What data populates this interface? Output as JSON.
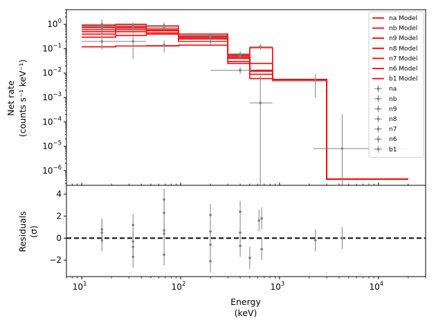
{
  "chart_data": [
    {
      "type": "line",
      "panel": "spectrum",
      "ylabel": "Net rate",
      "ylabel_units": "(counts s⁻¹ keV⁻¹)",
      "xscale": "log",
      "yscale": "log",
      "xlim": [
        7,
        30000
      ],
      "ylim": [
        2.5e-07,
        4
      ],
      "y_ticks": [
        {
          "value": 1e-06,
          "base": "10",
          "exp": "−6"
        },
        {
          "value": 1e-05,
          "base": "10",
          "exp": "−5"
        },
        {
          "value": 0.0001,
          "base": "10",
          "exp": "−4"
        },
        {
          "value": 0.001,
          "base": "10",
          "exp": "−3"
        },
        {
          "value": 0.01,
          "base": "10",
          "exp": "−2"
        },
        {
          "value": 0.1,
          "base": "10",
          "exp": "−1"
        },
        {
          "value": 1,
          "base": "10",
          "exp": "0"
        }
      ],
      "legend_position": "top-right",
      "model_color": "#ff0000",
      "data_color": "#808080",
      "model_series": [
        {
          "name": "na Model",
          "edges": [
            10,
            22,
            45,
            95,
            300,
            500,
            850,
            3000,
            20000
          ],
          "values": [
            0.4,
            0.5,
            0.45,
            0.2,
            0.03,
            0.006,
            0.005,
            4.5e-07
          ]
        },
        {
          "name": "nb Model",
          "edges": [
            10,
            22,
            45,
            95,
            300,
            500,
            850,
            3000,
            20000
          ],
          "values": [
            0.6,
            0.7,
            0.6,
            0.28,
            0.045,
            0.009,
            0.005,
            4.5e-07
          ]
        },
        {
          "name": "n9 Model",
          "edges": [
            10,
            22,
            45,
            95,
            300,
            500,
            850,
            3000,
            20000
          ],
          "values": [
            0.12,
            0.13,
            0.13,
            0.14,
            0.025,
            0.012,
            0.0055,
            4.5e-07
          ]
        },
        {
          "name": "n8 Model",
          "edges": [
            10,
            22,
            45,
            95,
            300,
            500,
            850,
            3000,
            20000
          ],
          "values": [
            0.9,
            1.0,
            0.85,
            0.4,
            0.06,
            0.013,
            0.005,
            4.5e-07
          ]
        },
        {
          "name": "n7 Model",
          "edges": [
            10,
            22,
            45,
            95,
            300,
            500,
            850,
            3000,
            20000
          ],
          "values": [
            0.75,
            0.8,
            0.7,
            0.33,
            0.055,
            0.025,
            0.0055,
            4.5e-07
          ]
        },
        {
          "name": "n6 Model",
          "edges": [
            10,
            22,
            45,
            95,
            300,
            500,
            850,
            3000,
            20000
          ],
          "values": [
            0.5,
            0.6,
            0.55,
            0.3,
            0.05,
            0.11,
            0.0055,
            4.5e-07
          ]
        },
        {
          "name": "b1 Model",
          "edges": [
            10,
            22,
            45,
            95,
            300,
            500,
            850,
            3000,
            20000
          ],
          "values": [
            0.3,
            0.35,
            0.4,
            0.25,
            0.04,
            0.013,
            0.005,
            4.5e-07
          ]
        }
      ],
      "data_series": [
        {
          "name": "na",
          "points": [
            {
              "x": 16,
              "xlo": 10,
              "xhi": 22,
              "y": 1.0,
              "ylo": 0.5,
              "yhi": 1.6
            },
            {
              "x": 33,
              "xlo": 22,
              "xhi": 45,
              "y": 0.75,
              "ylo": 0.5,
              "yhi": 1.0
            },
            {
              "x": 200,
              "xlo": 95,
              "xhi": 300,
              "y": 0.35,
              "ylo": 0.25,
              "yhi": 0.45
            }
          ]
        },
        {
          "name": "nb",
          "points": [
            {
              "x": 16,
              "xlo": 10,
              "xhi": 22,
              "y": 0.8,
              "ylo": 0.5,
              "yhi": 1.2
            },
            {
              "x": 68,
              "xlo": 45,
              "xhi": 95,
              "y": 0.9,
              "ylo": 0.6,
              "yhi": 1.2
            },
            {
              "x": 400,
              "xlo": 300,
              "xhi": 500,
              "y": 0.05,
              "ylo": 0.035,
              "yhi": 0.07
            }
          ]
        },
        {
          "name": "n9",
          "points": [
            {
              "x": 16,
              "xlo": 10,
              "xhi": 22,
              "y": 0.2,
              "ylo": 0.09,
              "yhi": 0.35
            },
            {
              "x": 33,
              "xlo": 22,
              "xhi": 45,
              "y": 0.2,
              "ylo": 0.04,
              "yhi": 0.5
            },
            {
              "x": 68,
              "xlo": 45,
              "xhi": 95,
              "y": 0.14,
              "ylo": 0.07,
              "yhi": 0.22
            }
          ]
        },
        {
          "name": "n8",
          "points": [
            {
              "x": 16,
              "xlo": 10,
              "xhi": 22,
              "y": 0.7,
              "ylo": 0.4,
              "yhi": 1.0
            },
            {
              "x": 33,
              "xlo": 22,
              "xhi": 45,
              "y": 0.9,
              "ylo": 0.6,
              "yhi": 1.2
            },
            {
              "x": 200,
              "xlo": 95,
              "xhi": 300,
              "y": 0.3,
              "ylo": 0.2,
              "yhi": 0.4
            }
          ]
        },
        {
          "name": "n7",
          "points": [
            {
              "x": 68,
              "xlo": 45,
              "xhi": 95,
              "y": 0.7,
              "ylo": 0.5,
              "yhi": 0.9
            },
            {
              "x": 400,
              "xlo": 200,
              "xhi": 550,
              "y": 0.013,
              "ylo": 0.009,
              "yhi": 0.018
            },
            {
              "x": 640,
              "xlo": 500,
              "xhi": 850,
              "y": 0.12,
              "ylo": 0.09,
              "yhi": 0.15
            }
          ]
        },
        {
          "name": "n6",
          "points": [
            {
              "x": 400,
              "xlo": 300,
              "xhi": 500,
              "y": 0.06,
              "ylo": 0.045,
              "yhi": 0.08
            },
            {
              "x": 640,
              "xlo": 500,
              "xhi": 850,
              "y": 0.0006,
              "ylo": 2.5e-07,
              "yhi": 0.008
            },
            {
              "x": 2300,
              "xlo": 850,
              "xhi": 3000,
              "y": 0.005,
              "ylo": 0.001,
              "yhi": 0.009
            }
          ]
        },
        {
          "name": "b1",
          "points": [
            {
              "x": 200,
              "xlo": 95,
              "xhi": 300,
              "y": 0.2,
              "ylo": 0.15,
              "yhi": 0.3
            },
            {
              "x": 4300,
              "xlo": 2200,
              "xhi": 20000,
              "y": 8e-06,
              "ylo": 2.5e-07,
              "yhi": 0.0002
            }
          ]
        }
      ]
    },
    {
      "type": "scatter",
      "panel": "residuals",
      "xlabel": "Energy",
      "xlabel_units": "(keV)",
      "ylabel": "Residuals",
      "ylabel_units": "(σ)",
      "xscale": "log",
      "xlim": [
        7,
        30000
      ],
      "ylim": [
        -3.5,
        4.8
      ],
      "y_ticks": [
        {
          "value": -2,
          "label": "−2"
        },
        {
          "value": 0,
          "label": "0"
        },
        {
          "value": 2,
          "label": "2"
        },
        {
          "value": 4,
          "label": "4"
        }
      ],
      "x_ticks": [
        {
          "value": 10,
          "base": "10",
          "exp": "1"
        },
        {
          "value": 100,
          "base": "10",
          "exp": "2"
        },
        {
          "value": 1000,
          "base": "10",
          "exp": "3"
        },
        {
          "value": 10000,
          "base": "10",
          "exp": "4"
        }
      ],
      "zero_line": 0,
      "points": [
        {
          "x": 16,
          "y": 0.8,
          "err": 1.0
        },
        {
          "x": 16,
          "y": 0.5,
          "err": 1.0
        },
        {
          "x": 16,
          "y": -0.2,
          "err": 1.0
        },
        {
          "x": 33,
          "y": 1.2,
          "err": 1.0
        },
        {
          "x": 33,
          "y": -0.3,
          "err": 1.0
        },
        {
          "x": 33,
          "y": -0.8,
          "err": 1.0
        },
        {
          "x": 33,
          "y": -1.7,
          "err": 1.0
        },
        {
          "x": 68,
          "y": 3.5,
          "err": 1.0
        },
        {
          "x": 68,
          "y": 2.3,
          "err": 1.0
        },
        {
          "x": 68,
          "y": 0.7,
          "err": 1.0
        },
        {
          "x": 68,
          "y": 0.4,
          "err": 1.0
        },
        {
          "x": 68,
          "y": -1.5,
          "err": 1.0
        },
        {
          "x": 200,
          "y": 2.1,
          "err": 1.0
        },
        {
          "x": 200,
          "y": 0.6,
          "err": 1.0
        },
        {
          "x": 200,
          "y": -0.6,
          "err": 1.0
        },
        {
          "x": 200,
          "y": -2.1,
          "err": 1.0
        },
        {
          "x": 400,
          "y": 2.4,
          "err": 1.0
        },
        {
          "x": 400,
          "y": 0.5,
          "err": 1.0
        },
        {
          "x": 400,
          "y": -0.7,
          "err": 1.0
        },
        {
          "x": 500,
          "y": -1.8,
          "err": 1.0
        },
        {
          "x": 620,
          "y": 1.6,
          "err": 1.0
        },
        {
          "x": 660,
          "y": 1.8,
          "err": 1.0
        },
        {
          "x": 660,
          "y": -1.0,
          "err": 1.0
        },
        {
          "x": 2300,
          "y": -0.2,
          "err": 1.0
        },
        {
          "x": 4300,
          "y": 0.0,
          "err": 1.0
        }
      ]
    }
  ]
}
